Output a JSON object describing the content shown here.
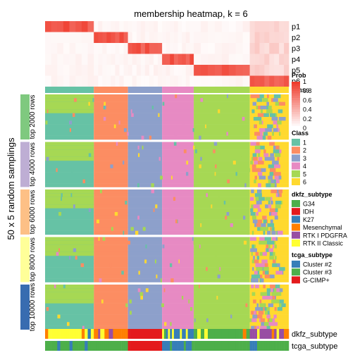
{
  "chart_data": {
    "type": "heatmap",
    "title": "membership heatmap, k = 6",
    "ylabel": "50 x 5 random samplings",
    "colors": {
      "class": {
        "1": "#66C2A5",
        "2": "#FC8D62",
        "3": "#8DA0CB",
        "4": "#E78AC3",
        "5": "#A6D854",
        "6": "#FFD92F"
      },
      "prob_low": "#FFFFFF",
      "prob_high": "#EF3B2C",
      "dkfz_subtype": {
        "G34": "#4DAF4A",
        "IDH": "#E41A1C",
        "K27": "#377EB8",
        "Mesenchymal": "#FF7F00",
        "RTK I PDGFRA": "#984EA3",
        "RTK II Classic": "#FFFF33"
      },
      "tcga_subtype": {
        "Cluster #2": "#377EB8",
        "Cluster #3": "#4DAF4A",
        "G-CIMP+": "#E41A1C"
      }
    },
    "prob_rows": [
      "p1",
      "p2",
      "p3",
      "p4",
      "p5",
      "p6"
    ],
    "class_row_label": "Class",
    "class_order": [
      1,
      2,
      3,
      4,
      5,
      6
    ],
    "class_column_fractions": [
      0.2,
      0.14,
      0.14,
      0.13,
      0.23,
      0.16
    ],
    "row_groups": [
      {
        "label": "top 2000 rows",
        "color": "#7FC97F"
      },
      {
        "label": "top 4000 rows",
        "color": "#BEAED4"
      },
      {
        "label": "top 6000 rows",
        "color": "#FDC086"
      },
      {
        "label": "top 8000 rows",
        "color": "#FFFF99"
      },
      {
        "label": "top 10000 rows",
        "color": "#386CB0"
      }
    ],
    "annotations": [
      "dkfz_subtype",
      "tcga_subtype"
    ],
    "legends": {
      "prob": {
        "title": "Prob",
        "ticks": [
          "1",
          "0.8",
          "0.6",
          "0.4",
          "0.2",
          "0"
        ]
      },
      "class": {
        "title": "Class",
        "entries": [
          "1",
          "2",
          "3",
          "4",
          "5",
          "6"
        ]
      },
      "dkfz_subtype": {
        "title": "dkfz_subtype",
        "entries": [
          "G34",
          "IDH",
          "K27",
          "Mesenchymal",
          "RTK I PDGFRA",
          "RTK II Classic"
        ]
      },
      "tcga_subtype": {
        "title": "tcga_subtype",
        "entries": [
          "Cluster #2",
          "Cluster #3",
          "G-CIMP+"
        ]
      }
    }
  }
}
